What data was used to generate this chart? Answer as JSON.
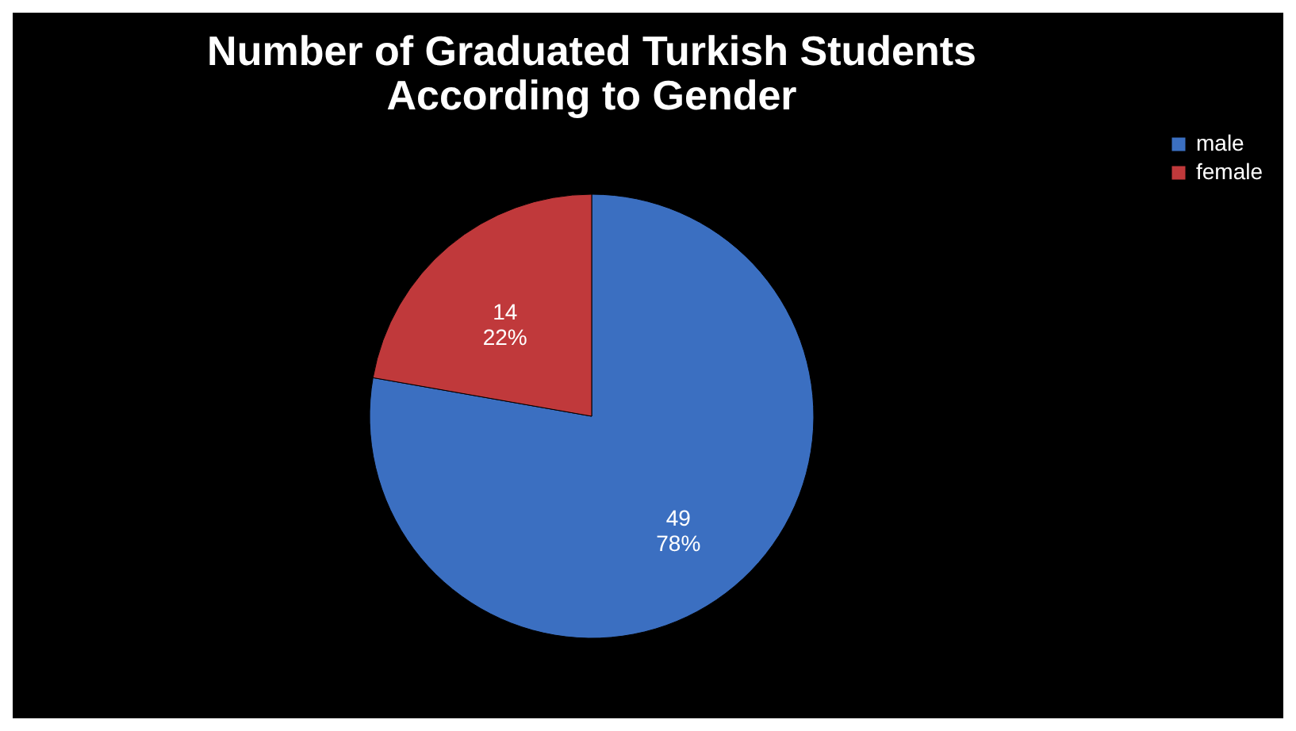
{
  "chart_data": {
    "type": "pie",
    "title": "Number of Graduated Turkish Students\nAccording to Gender",
    "categories": [
      "male",
      "female"
    ],
    "values": [
      49,
      14
    ],
    "colors": [
      "#3b6fc1",
      "#c0393b"
    ],
    "value_labels": [
      "49\n78%",
      "14\n22%"
    ],
    "legend": "right"
  }
}
